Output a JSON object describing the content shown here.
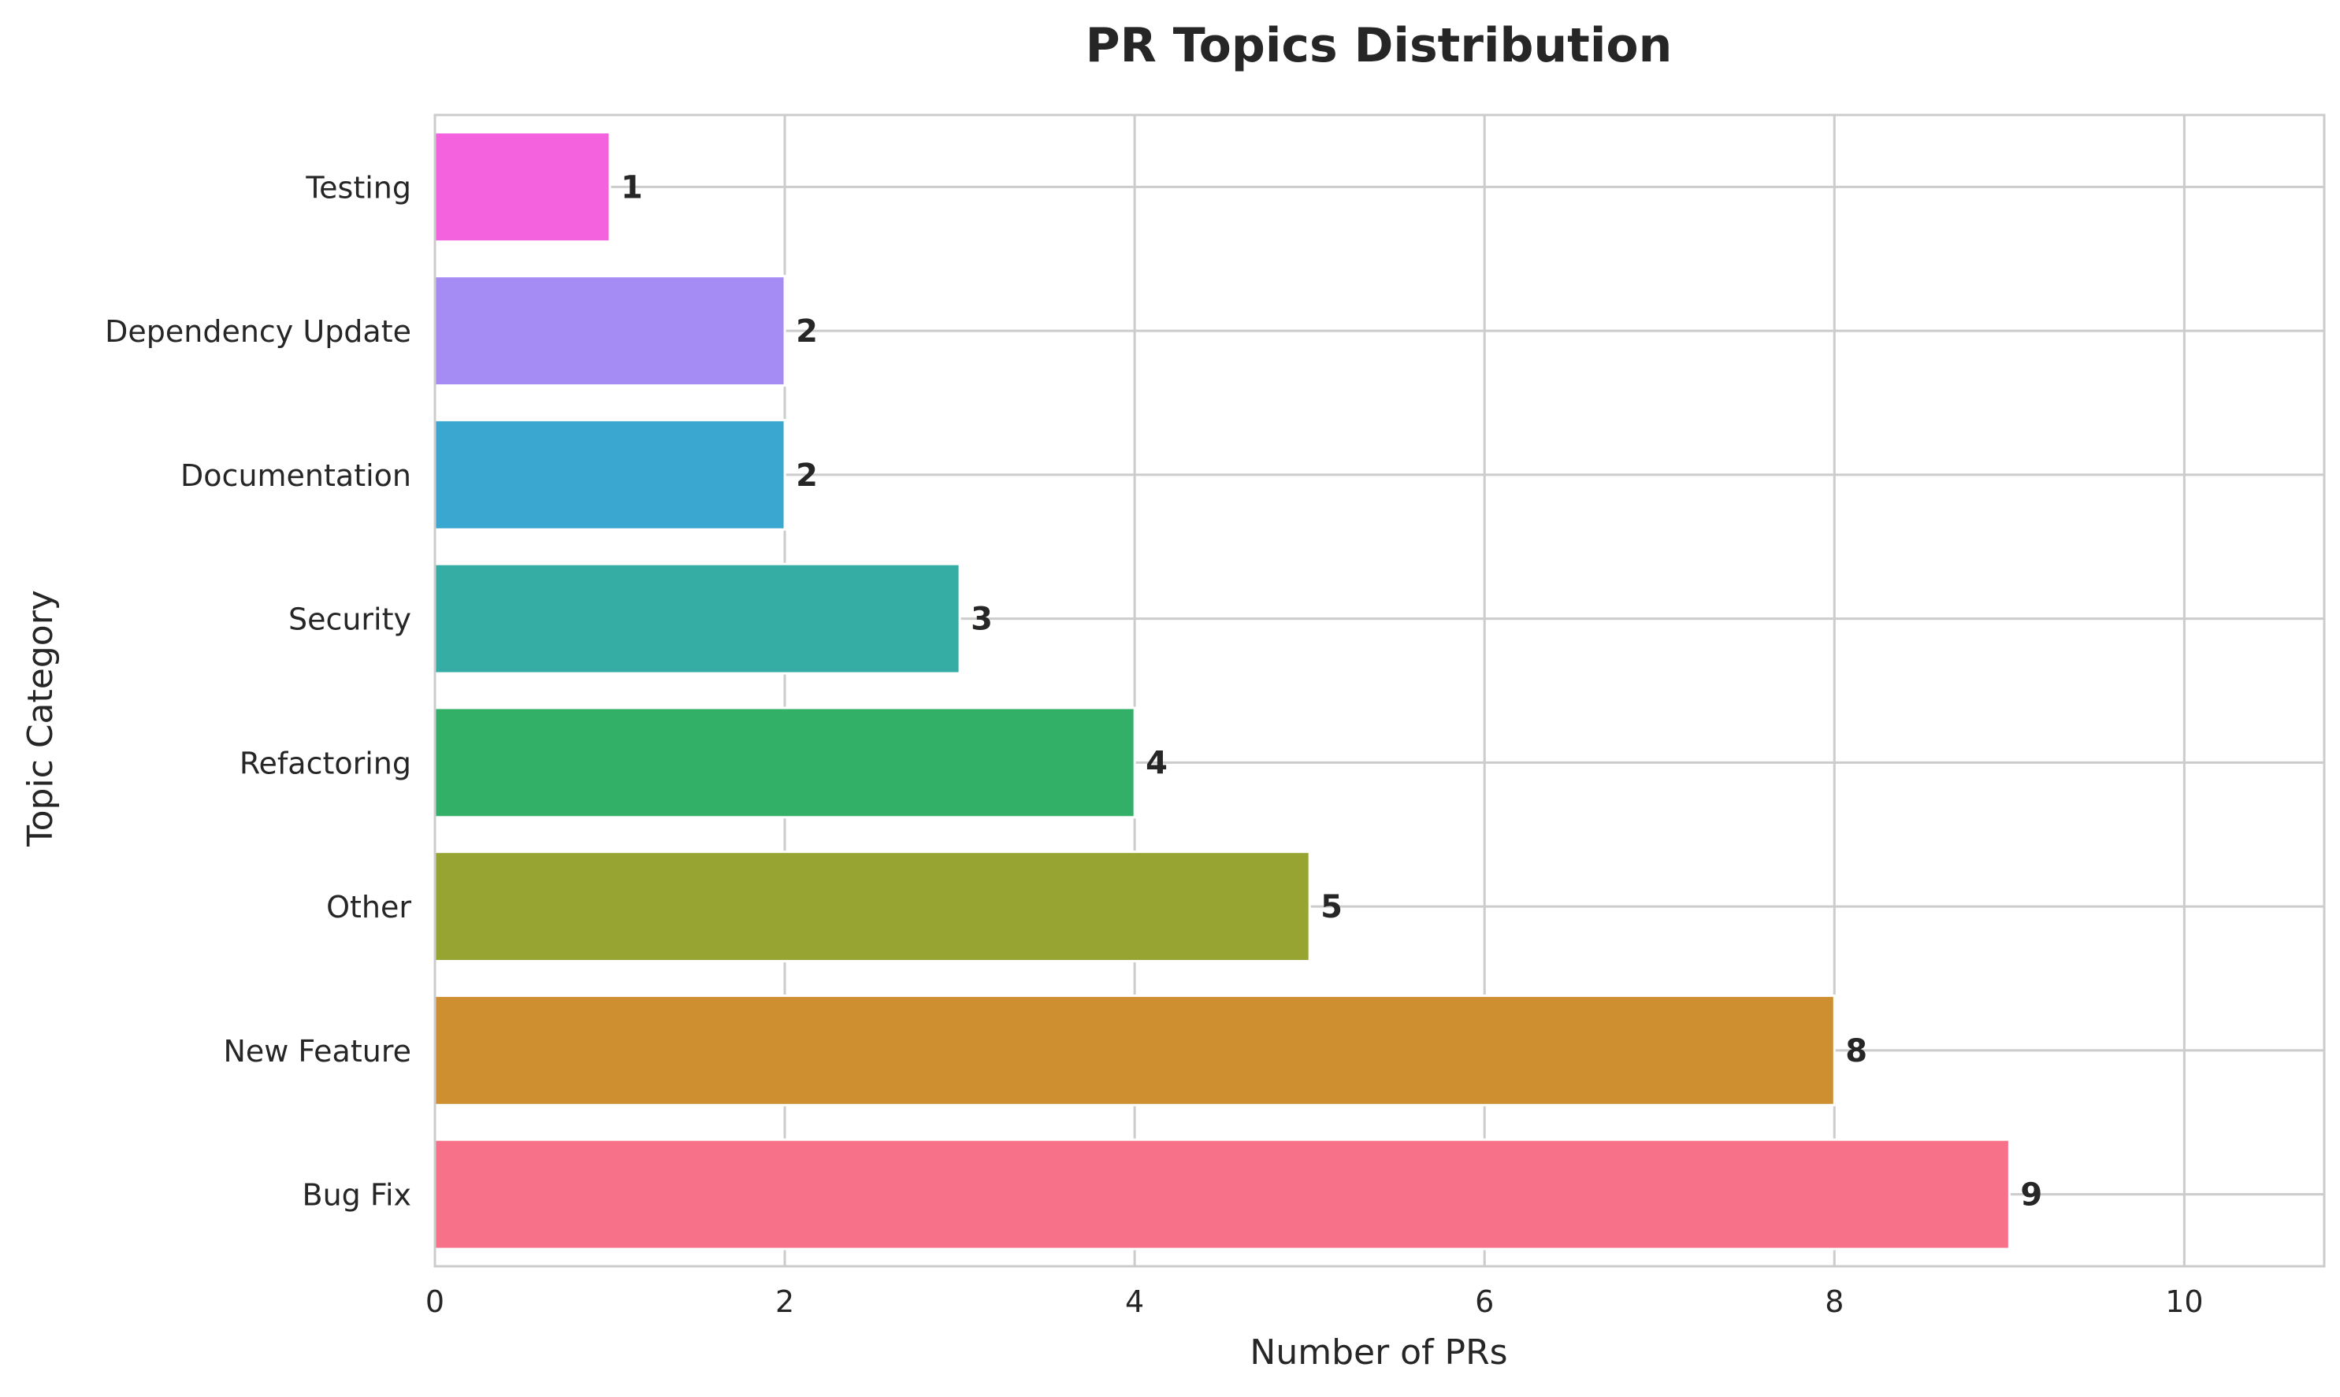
{
  "chart_data": {
    "type": "bar",
    "orientation": "horizontal",
    "title": "PR Topics Distribution",
    "xlabel": "Number of PRs",
    "ylabel": "Topic Category",
    "categories": [
      "Bug Fix",
      "New Feature",
      "Other",
      "Refactoring",
      "Security",
      "Documentation",
      "Dependency Update",
      "Testing"
    ],
    "values": [
      9,
      8,
      5,
      4,
      3,
      2,
      2,
      1
    ],
    "colors": [
      "#f77189",
      "#ce8f31",
      "#97a431",
      "#33b067",
      "#36ada4",
      "#39a7d0",
      "#a48cf4",
      "#f562dd"
    ],
    "xlim": [
      0,
      10.8
    ],
    "xticks": [
      0,
      2,
      4,
      6,
      8,
      10
    ],
    "grid": true,
    "data_labels": true
  }
}
